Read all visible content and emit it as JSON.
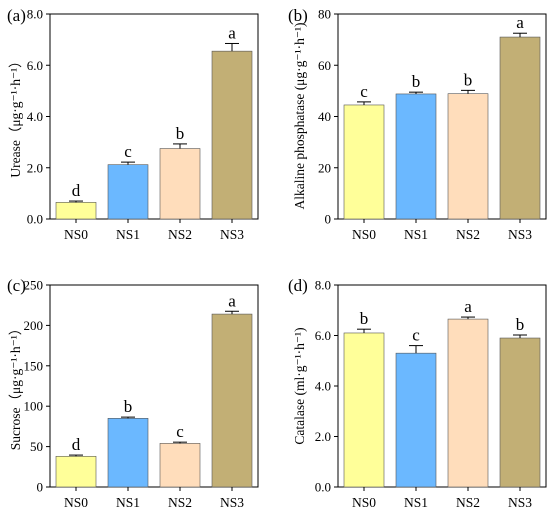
{
  "palette": [
    "#FFFF99",
    "#6BB8FF",
    "#FFDDBB",
    "#C2AF75"
  ],
  "chart_data": [
    {
      "type": "bar",
      "panel": "(a)",
      "ylabel": "Urease（μg·g⁻¹·h⁻¹）",
      "categories": [
        "NS0",
        "NS1",
        "NS2",
        "NS3"
      ],
      "values": [
        0.65,
        2.12,
        2.75,
        6.55
      ],
      "errors": [
        0.05,
        0.1,
        0.18,
        0.3
      ],
      "letters": [
        "d",
        "c",
        "b",
        "a"
      ],
      "ylim": [
        0,
        8
      ],
      "yticks": [
        "0.0",
        "2.0",
        "4.0",
        "6.0",
        "8.0"
      ]
    },
    {
      "type": "bar",
      "panel": "(b)",
      "ylabel": "Alkaline phosphatase (μg·g⁻¹·h⁻¹)",
      "categories": [
        "NS0",
        "NS1",
        "NS2",
        "NS3"
      ],
      "values": [
        44.5,
        48.8,
        48.9,
        71.0
      ],
      "errors": [
        1.2,
        0.7,
        1.3,
        1.5
      ],
      "letters": [
        "c",
        "b",
        "b",
        "a"
      ],
      "ylim": [
        0,
        80
      ],
      "yticks": [
        "0",
        "20",
        "40",
        "60",
        "80"
      ]
    },
    {
      "type": "bar",
      "panel": "(c)",
      "ylabel": "Sucrose（μg·g⁻¹·h⁻¹）",
      "categories": [
        "NS0",
        "NS1",
        "NS2",
        "NS3"
      ],
      "values": [
        38,
        85,
        54,
        214
      ],
      "errors": [
        1.5,
        1.5,
        1.5,
        3.5
      ],
      "letters": [
        "d",
        "b",
        "c",
        "a"
      ],
      "ylim": [
        0,
        250
      ],
      "yticks": [
        "0",
        "50",
        "100",
        "150",
        "200",
        "250"
      ]
    },
    {
      "type": "bar",
      "panel": "(d)",
      "ylabel": "Catalase (ml·g⁻¹·h⁻¹)",
      "categories": [
        "NS0",
        "NS1",
        "NS2",
        "NS3"
      ],
      "values": [
        6.1,
        5.3,
        6.65,
        5.9
      ],
      "errors": [
        0.15,
        0.3,
        0.08,
        0.12
      ],
      "letters": [
        "b",
        "c",
        "a",
        "b"
      ],
      "ylim": [
        0,
        8
      ],
      "yticks": [
        "0.0",
        "2.0",
        "4.0",
        "6.0",
        "8.0"
      ]
    }
  ]
}
